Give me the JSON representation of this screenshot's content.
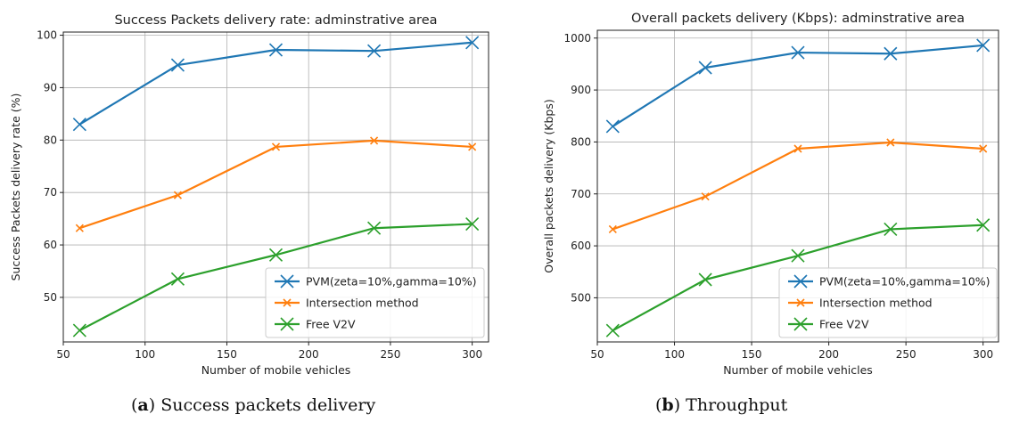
{
  "captions": [
    {
      "letter": "a",
      "text": "Success packets delivery"
    },
    {
      "letter": "b",
      "text": "Throughput"
    }
  ],
  "colors": {
    "series": [
      "#1f77b4",
      "#ff7f0e",
      "#2ca02c"
    ],
    "grid": "#b0b0b0"
  },
  "chart_data": [
    {
      "type": "line",
      "title": "Success Packets delivery rate: adminstrative area",
      "xlabel": "Number of mobile vehicles",
      "ylabel": "Success Packets delivery rate (%)",
      "xlim": [
        50,
        310
      ],
      "ylim": [
        41.5,
        100.6
      ],
      "xticks": [
        50,
        100,
        150,
        200,
        250,
        300
      ],
      "yticks": [
        50,
        60,
        70,
        80,
        90,
        100
      ],
      "grid": true,
      "legend_position": "lower-right",
      "x": [
        60,
        120,
        180,
        240,
        300
      ],
      "series": [
        {
          "name": "PVM(zeta=10%,gamma=10%)",
          "values": [
            83.0,
            94.3,
            97.2,
            97.0,
            98.6
          ],
          "marker": "x-large"
        },
        {
          "name": "Intersection method",
          "values": [
            63.2,
            69.5,
            78.7,
            79.9,
            78.7
          ],
          "marker": "x-small"
        },
        {
          "name": "Free V2V",
          "values": [
            43.7,
            53.5,
            58.1,
            63.2,
            64.0
          ],
          "marker": "x-large"
        }
      ]
    },
    {
      "type": "line",
      "title": "Overall packets delivery (Kbps): adminstrative area",
      "xlabel": "Number of mobile vehicles",
      "ylabel": "Overall packets delivery (Kbps)",
      "xlim": [
        50,
        310
      ],
      "ylim": [
        415,
        1015
      ],
      "xticks": [
        50,
        100,
        150,
        200,
        250,
        300
      ],
      "yticks": [
        500,
        600,
        700,
        800,
        900,
        1000
      ],
      "grid": true,
      "legend_position": "lower-right",
      "x": [
        60,
        120,
        180,
        240,
        300
      ],
      "series": [
        {
          "name": "PVM(zeta=10%,gamma=10%)",
          "values": [
            830,
            943,
            972,
            970,
            986
          ],
          "marker": "x-large"
        },
        {
          "name": "Intersection method",
          "values": [
            632,
            695,
            787,
            799,
            787
          ],
          "marker": "x-small"
        },
        {
          "name": "Free V2V",
          "values": [
            437,
            535,
            581,
            632,
            640
          ],
          "marker": "x-large"
        }
      ]
    }
  ]
}
